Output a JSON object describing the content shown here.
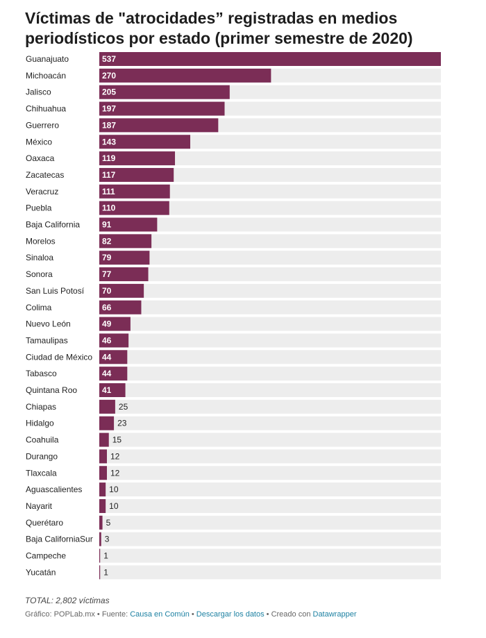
{
  "chart_data": {
    "type": "bar",
    "orientation": "horizontal",
    "title": "Víctimas de \"atrocidades” registradas en medios periodísticos por estado (primer semestre de 2020)",
    "bar_color": "#7b2d56",
    "track_color": "#ededed",
    "xlim": [
      0,
      537
    ],
    "categories": [
      "Guanajuato",
      "Michoacán",
      "Jalisco",
      "Chihuahua",
      "Guerrero",
      "México",
      "Oaxaca",
      "Zacatecas",
      "Veracruz",
      "Puebla",
      "Baja California",
      "Morelos",
      "Sinaloa",
      "Sonora",
      "San Luis Potosí",
      "Colima",
      "Nuevo León",
      "Tamaulipas",
      "Ciudad de México",
      "Tabasco",
      "Quintana Roo",
      "Chiapas",
      "Hidalgo",
      "Coahuila",
      "Durango",
      "Tlaxcala",
      "Aguascalientes",
      "Nayarit",
      "Querétaro",
      "Baja CaliforniaSur",
      "Campeche",
      "Yucatán"
    ],
    "values": [
      537,
      270,
      205,
      197,
      187,
      143,
      119,
      117,
      111,
      110,
      91,
      82,
      79,
      77,
      70,
      66,
      49,
      46,
      44,
      44,
      41,
      25,
      23,
      15,
      12,
      12,
      10,
      10,
      5,
      3,
      1,
      1
    ]
  },
  "note": "TOTAL: 2,802 víctimas",
  "footer": {
    "credit": "Gráfico: POPLab.mx • Fuente: ",
    "source": "Causa en Común",
    "sep1": " • ",
    "download": "Descargar los datos",
    "sep2": " • Creado con ",
    "tool": "Datawrapper"
  }
}
